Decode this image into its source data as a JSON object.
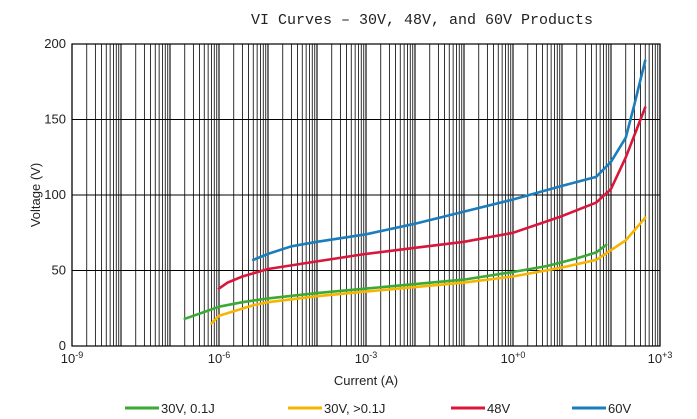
{
  "chart_data": {
    "type": "line",
    "title": "VI Curves – 30V, 48V, and 60V Products",
    "xlabel": "Current (A)",
    "ylabel": "Voltage (V)",
    "xscale": "log",
    "xlim": [
      1e-09,
      1000
    ],
    "ylim": [
      0,
      200
    ],
    "grid": true,
    "legend_position": "bottom",
    "x_ticks": [
      {
        "base": "10",
        "exp": "-9",
        "value": 1e-09
      },
      {
        "base": "10",
        "exp": "-6",
        "value": 1e-06
      },
      {
        "base": "10",
        "exp": "-3",
        "value": 0.001
      },
      {
        "base": "10",
        "exp": "+0",
        "value": 1
      },
      {
        "base": "10",
        "exp": "+3",
        "value": 1000
      }
    ],
    "y_ticks": [
      "0",
      "50",
      "100",
      "150",
      "200"
    ],
    "y_tick_values": [
      0,
      50,
      100,
      150,
      200
    ],
    "series": [
      {
        "name": "30V, 0.1J",
        "color": "#3aaa35",
        "points": [
          [
            2e-07,
            18
          ],
          [
            3e-07,
            20
          ],
          [
            5e-07,
            22.5
          ],
          [
            1e-06,
            26
          ],
          [
            3e-06,
            29
          ],
          [
            1e-05,
            31.5
          ],
          [
            0.0001,
            35
          ],
          [
            0.001,
            38
          ],
          [
            0.01,
            41
          ],
          [
            0.1,
            44
          ],
          [
            1,
            49
          ],
          [
            5,
            53
          ],
          [
            20,
            58
          ],
          [
            50,
            62
          ],
          [
            80,
            67
          ]
        ]
      },
      {
        "name": "30V, >0.1J",
        "color": "#f7b500",
        "points": [
          [
            7e-07,
            15
          ],
          [
            1e-06,
            20
          ],
          [
            2e-06,
            23
          ],
          [
            5e-06,
            27
          ],
          [
            1e-05,
            29
          ],
          [
            0.0001,
            33
          ],
          [
            0.001,
            36
          ],
          [
            0.01,
            39
          ],
          [
            0.1,
            42
          ],
          [
            1,
            46
          ],
          [
            10,
            52
          ],
          [
            50,
            57
          ],
          [
            200,
            70
          ],
          [
            500,
            85
          ]
        ]
      },
      {
        "name": "48V",
        "color": "#d8173a",
        "points": [
          [
            1e-06,
            38
          ],
          [
            1.5e-06,
            42
          ],
          [
            3e-06,
            46
          ],
          [
            1e-05,
            51
          ],
          [
            0.0001,
            56
          ],
          [
            0.001,
            61
          ],
          [
            0.01,
            65
          ],
          [
            0.1,
            69
          ],
          [
            1,
            75
          ],
          [
            10,
            86
          ],
          [
            50,
            95
          ],
          [
            100,
            104
          ],
          [
            200,
            125
          ],
          [
            400,
            150
          ],
          [
            500,
            158
          ]
        ]
      },
      {
        "name": "60V",
        "color": "#1a7dbc",
        "points": [
          [
            5e-06,
            57
          ],
          [
            1e-05,
            61
          ],
          [
            3e-05,
            66
          ],
          [
            0.0001,
            69
          ],
          [
            0.001,
            74
          ],
          [
            0.01,
            81
          ],
          [
            0.1,
            89
          ],
          [
            1,
            97
          ],
          [
            10,
            106
          ],
          [
            50,
            112
          ],
          [
            100,
            122
          ],
          [
            200,
            138
          ],
          [
            300,
            160
          ],
          [
            500,
            189
          ]
        ]
      }
    ]
  }
}
